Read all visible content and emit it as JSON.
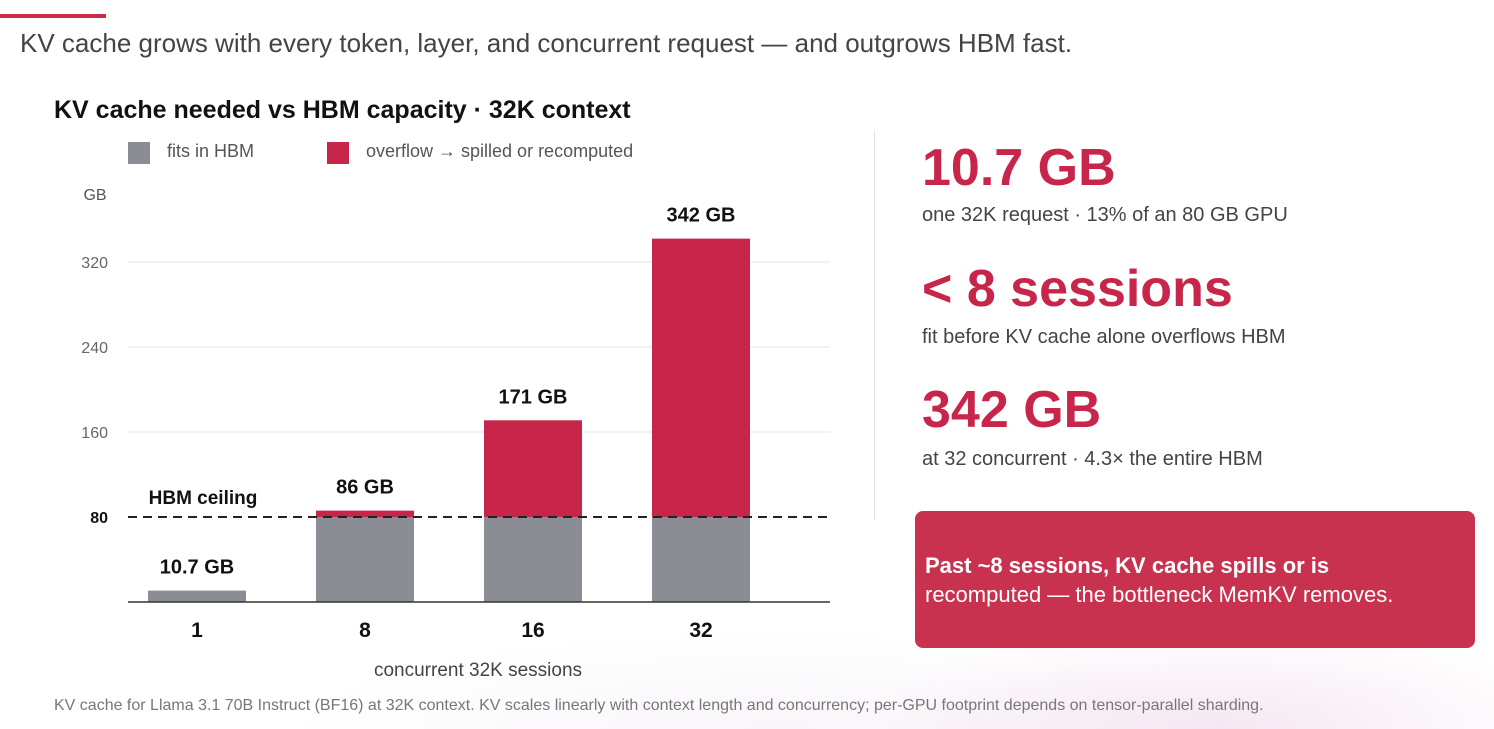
{
  "headline": "KV cache grows with every token, layer, and concurrent request — and outgrows HBM fast.",
  "colors": {
    "accent": "#c8254a",
    "fits": "#8a8d93",
    "overflow": "#c8254a",
    "callout_bg": "#c8324f"
  },
  "chart_data": {
    "type": "bar",
    "stacked": true,
    "title": "KV cache needed vs HBM capacity  ·  32K context",
    "ylabel": "GB",
    "xlabel": "concurrent 32K sessions",
    "categories": [
      "1",
      "8",
      "16",
      "32"
    ],
    "series": [
      {
        "name": "fits in HBM",
        "color": "#8a8d93",
        "values": [
          10.7,
          80,
          80,
          80
        ]
      },
      {
        "name": "overflow → spilled or recomputed",
        "color": "#c8254a",
        "values": [
          0,
          6,
          91,
          262
        ]
      }
    ],
    "totals": [
      10.7,
      86,
      171,
      342
    ],
    "data_labels": [
      "10.7 GB",
      "86 GB",
      "171 GB",
      "342 GB"
    ],
    "y_ticks": [
      80,
      160,
      240,
      320
    ],
    "ylim": [
      0,
      360
    ],
    "reference_line": {
      "value": 80,
      "label": "HBM ceiling",
      "style": "dashed"
    },
    "grid": true,
    "legend_position": "top"
  },
  "stats": [
    {
      "value": "10.7 GB",
      "label": "one 32K request · 13% of an 80 GB GPU"
    },
    {
      "value": "< 8 sessions",
      "label": "fit before KV cache alone overflows HBM"
    },
    {
      "value": "342 GB",
      "label": "at 32 concurrent · 4.3× the entire HBM"
    }
  ],
  "callout": {
    "bold": "Past ~8 sessions, KV cache spills or is",
    "rest": "recomputed — the bottleneck MemKV removes."
  },
  "footnote": "KV cache for Llama 3.1 70B Instruct (BF16) at 32K context. KV scales linearly with context length and concurrency; per-GPU footprint depends on tensor-parallel sharding."
}
